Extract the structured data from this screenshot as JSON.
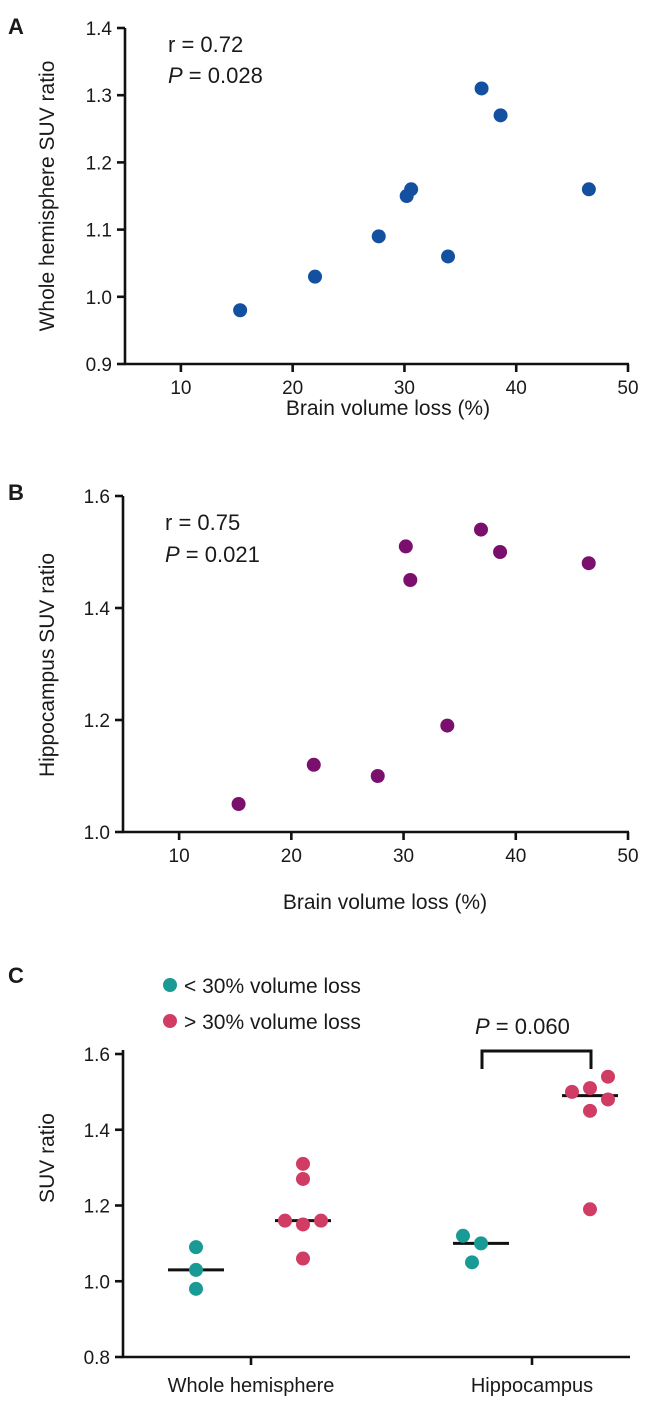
{
  "chart_data": [
    {
      "type": "scatter",
      "panel_label": "A",
      "xlabel": "Brain volume loss (%)",
      "ylabel": "Whole hemisphere SUV ratio",
      "xlim": [
        5,
        50
      ],
      "ylim": [
        0.9,
        1.4
      ],
      "x_ticks": [
        "10",
        "20",
        "30",
        "40",
        "50"
      ],
      "y_ticks": [
        "0.9",
        "1.0",
        "1.1",
        "1.2",
        "1.3",
        "1.4"
      ],
      "point_color": "#1450a0",
      "annotation_r": "r = 0.72",
      "annotation_p_label": "P",
      "annotation_p_value": " = 0.028",
      "points": [
        {
          "x": 15.3,
          "y": 0.98
        },
        {
          "x": 22.0,
          "y": 1.03
        },
        {
          "x": 27.7,
          "y": 1.09
        },
        {
          "x": 30.2,
          "y": 1.15
        },
        {
          "x": 30.6,
          "y": 1.16
        },
        {
          "x": 33.9,
          "y": 1.06
        },
        {
          "x": 36.9,
          "y": 1.31
        },
        {
          "x": 38.6,
          "y": 1.27
        },
        {
          "x": 46.5,
          "y": 1.16
        }
      ]
    },
    {
      "type": "scatter",
      "panel_label": "B",
      "xlabel": "Brain volume loss (%)",
      "ylabel": "Hippocampus SUV ratio",
      "xlim": [
        5,
        50
      ],
      "ylim": [
        1.0,
        1.6
      ],
      "x_ticks": [
        "10",
        "20",
        "30",
        "40",
        "50"
      ],
      "y_ticks": [
        "1.0",
        "1.2",
        "1.4",
        "1.6"
      ],
      "point_color": "#7a0f6e",
      "annotation_r": "r = 0.75",
      "annotation_p_label": "P",
      "annotation_p_value": " = 0.021",
      "points": [
        {
          "x": 15.3,
          "y": 1.05
        },
        {
          "x": 22.0,
          "y": 1.12
        },
        {
          "x": 27.7,
          "y": 1.1
        },
        {
          "x": 30.2,
          "y": 1.51
        },
        {
          "x": 30.6,
          "y": 1.45
        },
        {
          "x": 33.9,
          "y": 1.19
        },
        {
          "x": 36.9,
          "y": 1.54
        },
        {
          "x": 38.6,
          "y": 1.5
        },
        {
          "x": 46.5,
          "y": 1.48
        }
      ]
    },
    {
      "type": "scatter",
      "panel_label": "C",
      "ylabel": "SUV ratio",
      "ylim": [
        0.8,
        1.6
      ],
      "y_ticks": [
        "0.8",
        "1.0",
        "1.2",
        "1.4",
        "1.6"
      ],
      "categories": [
        "Whole hemisphere",
        "Hippocampus"
      ],
      "comparison_p_label": "P",
      "comparison_p_value": " = 0.060",
      "series": [
        {
          "name": "< 30% volume loss",
          "color": "#1a9a94",
          "median": [
            1.03,
            1.1
          ],
          "points": [
            {
              "category": 0,
              "x_offset": 0,
              "y": 1.09
            },
            {
              "category": 0,
              "x_offset": 0,
              "y": 1.03
            },
            {
              "category": 0,
              "x_offset": 0,
              "y": 0.98
            },
            {
              "category": 1,
              "x_offset": -1,
              "y": 1.12
            },
            {
              "category": 1,
              "x_offset": 0,
              "y": 1.1
            },
            {
              "category": 1,
              "x_offset": -0.5,
              "y": 1.05
            }
          ]
        },
        {
          "name": "> 30% volume loss",
          "color": "#d03c64",
          "median": [
            1.16,
            1.49
          ],
          "points": [
            {
              "category": 0,
              "x_offset": -1,
              "y": 1.16
            },
            {
              "category": 0,
              "x_offset": 0,
              "y": 1.31
            },
            {
              "category": 0,
              "x_offset": 0,
              "y": 1.27
            },
            {
              "category": 0,
              "x_offset": 0,
              "y": 1.15
            },
            {
              "category": 0,
              "x_offset": 1,
              "y": 1.16
            },
            {
              "category": 0,
              "x_offset": 0,
              "y": 1.06
            },
            {
              "category": 1,
              "x_offset": -1,
              "y": 1.5
            },
            {
              "category": 1,
              "x_offset": 0,
              "y": 1.51
            },
            {
              "category": 1,
              "x_offset": 0,
              "y": 1.45
            },
            {
              "category": 1,
              "x_offset": 1,
              "y": 1.54
            },
            {
              "category": 1,
              "x_offset": 1,
              "y": 1.48
            },
            {
              "category": 1,
              "x_offset": 0,
              "y": 1.19
            }
          ]
        }
      ]
    }
  ]
}
